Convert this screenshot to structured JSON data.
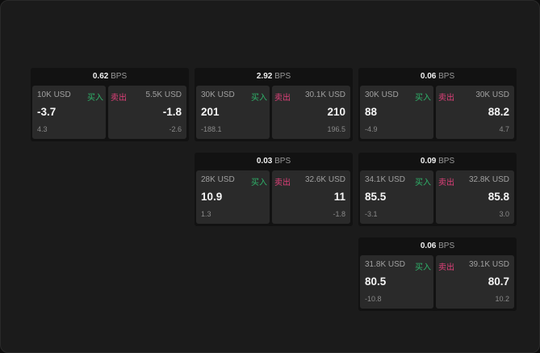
{
  "unit": "BPS",
  "labels": {
    "buy": "买入",
    "sell": "卖出"
  },
  "colors": {
    "buy": "#2fb36a",
    "sell": "#e0407a"
  },
  "quotes": [
    {
      "spread": "0.62",
      "bid": {
        "qty": "10K USD",
        "price": "-3.7",
        "change": "4.3"
      },
      "ask": {
        "qty": "5.5K USD",
        "price": "-1.8",
        "change": "-2.6"
      }
    },
    {
      "spread": "2.92",
      "bid": {
        "qty": "30K USD",
        "price": "201",
        "change": "-188.1"
      },
      "ask": {
        "qty": "30.1K USD",
        "price": "210",
        "change": "196.5"
      }
    },
    {
      "spread": "0.06",
      "bid": {
        "qty": "30K USD",
        "price": "88",
        "change": "-4.9"
      },
      "ask": {
        "qty": "30K USD",
        "price": "88.2",
        "change": "4.7"
      }
    },
    {
      "spread": "0.03",
      "bid": {
        "qty": "28K USD",
        "price": "10.9",
        "change": "1.3"
      },
      "ask": {
        "qty": "32.6K USD",
        "price": "11",
        "change": "-1.8"
      }
    },
    {
      "spread": "0.09",
      "bid": {
        "qty": "34.1K USD",
        "price": "85.5",
        "change": "-3.1"
      },
      "ask": {
        "qty": "32.8K USD",
        "price": "85.8",
        "change": "3.0"
      }
    },
    {
      "spread": "0.06",
      "bid": {
        "qty": "31.8K USD",
        "price": "80.5",
        "change": "-10.8"
      },
      "ask": {
        "qty": "39.1K USD",
        "price": "80.7",
        "change": "10.2"
      }
    }
  ]
}
